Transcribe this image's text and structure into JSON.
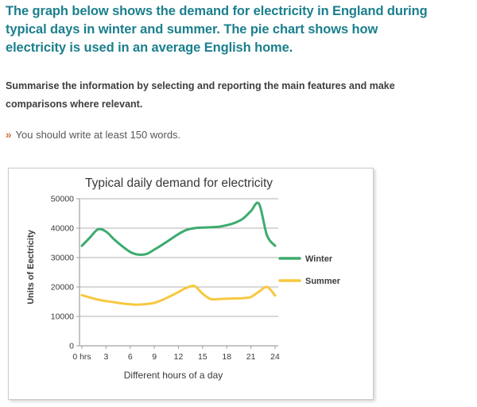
{
  "page": {
    "heading_lines": [
      "The graph below shows the demand for electricity in England during",
      "typical days in winter and summer. The pie chart shows how",
      "electricity is used in an average English home."
    ],
    "instruction_lines": [
      "Summarise the information by selecting and reporting the main features and make",
      "comparisons where relevant."
    ],
    "tip_bullet": "»",
    "tip_text": "You should write at least 150 words."
  },
  "colors": {
    "heading_text": "#1b7f8d",
    "body_text": "#3d3d3d",
    "tip_bullet": "#d4713a",
    "gridline": "#b5b2af",
    "axis": "#a1a1a1",
    "panel_border": "#cbcbcb"
  },
  "chart_data": {
    "type": "line",
    "title": "Typical daily demand for electricity",
    "xlabel": "Different hours of a day",
    "ylabel": "Units of Eectricity",
    "xlim": [
      0,
      24
    ],
    "ylim": [
      0,
      50000
    ],
    "grid": true,
    "legend_position": "right",
    "x_tick_labels": [
      "0 hrs",
      "3",
      "6",
      "9",
      "12",
      "15",
      "18",
      "21",
      "24"
    ],
    "x_tick_values": [
      0,
      3,
      6,
      9,
      12,
      15,
      18,
      21,
      24
    ],
    "y_ticks": [
      0,
      10000,
      20000,
      30000,
      40000,
      50000
    ],
    "x_hours": [
      0,
      1,
      2,
      3,
      4,
      5,
      6,
      7,
      8,
      9,
      10,
      11,
      12,
      13,
      14,
      15,
      16,
      17,
      18,
      19,
      20,
      21,
      22,
      23,
      24
    ],
    "series": [
      {
        "name": "Winter",
        "color": "#3cab6e",
        "values": [
          34000,
          36800,
          39600,
          38800,
          36200,
          33900,
          31900,
          31000,
          31200,
          32700,
          34400,
          36200,
          38000,
          39400,
          40000,
          40200,
          40300,
          40500,
          41000,
          41800,
          43200,
          45800,
          48300,
          37500,
          34000
        ]
      },
      {
        "name": "Summer",
        "color": "#f7c83f",
        "values": [
          17200,
          16400,
          15700,
          15200,
          14800,
          14400,
          14100,
          14000,
          14200,
          14600,
          15600,
          16900,
          18300,
          19700,
          20300,
          17700,
          15900,
          15900,
          16000,
          16100,
          16200,
          16600,
          18400,
          20000,
          17100
        ]
      }
    ]
  }
}
